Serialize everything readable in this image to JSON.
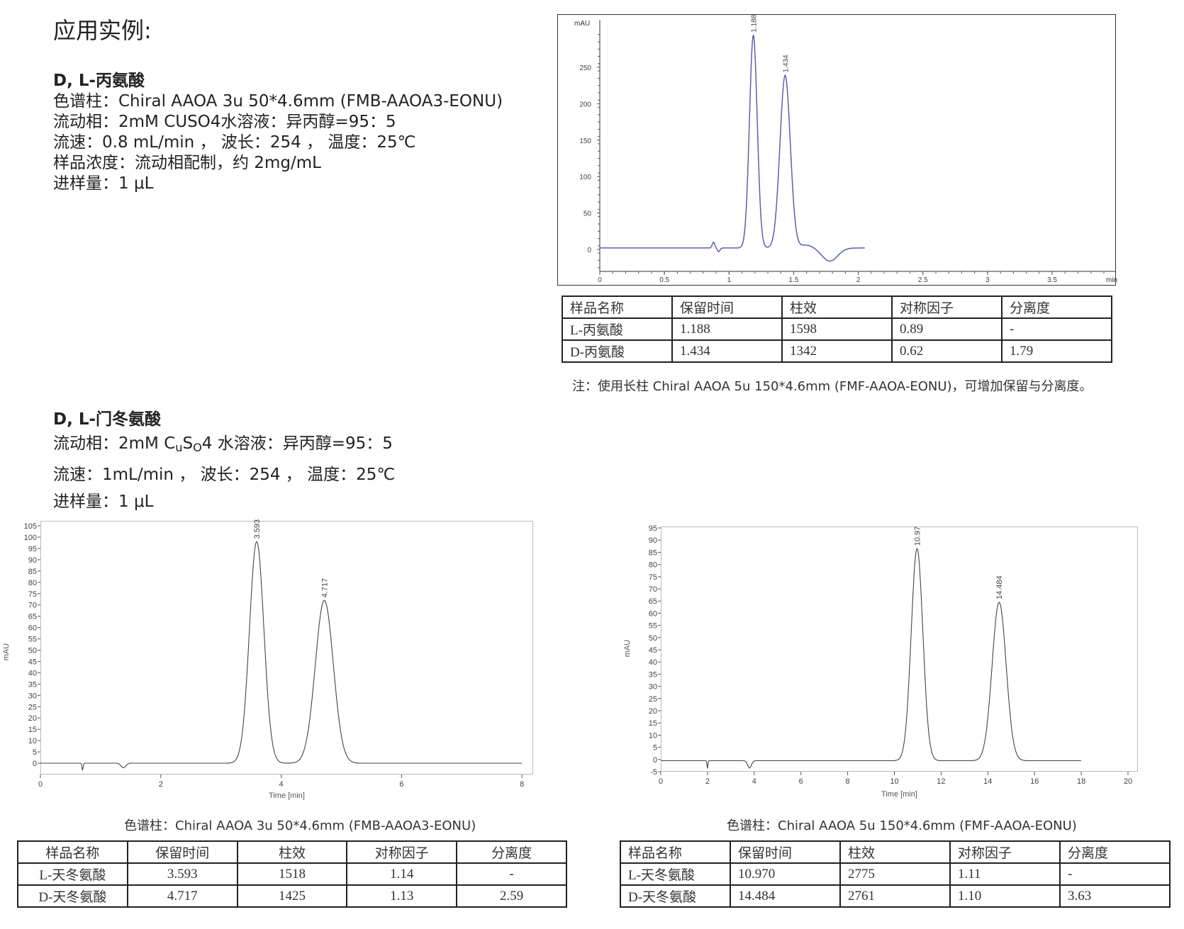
{
  "page_title": "应用实例:",
  "section1": {
    "heading": "D, L-丙氨酸",
    "lines": [
      "色谱柱：Chiral AAOA 3u 50*4.6mm (FMB-AAOA3-EONU)",
      "流动相：2mM CUSO4水溶液：异丙醇=95：5",
      "流速：0.8 mL/min ， 波长：254 ， 温度：25℃",
      "样品浓度：流动相配制，约 2mg/mL",
      "进样量：1 μL"
    ],
    "table": {
      "headers": [
        "样品名称",
        "保留时间",
        "柱效",
        "对称因子",
        "分离度"
      ],
      "rows": [
        [
          "L-丙氨酸",
          "1.188",
          "1598",
          "0.89",
          "-"
        ],
        [
          "D-丙氨酸",
          "1.434",
          "1342",
          "0.62",
          "1.79"
        ]
      ]
    },
    "note": "注：使用长柱 Chiral AAOA 5u 150*4.6mm (FMF-AAOA-EONU)，可增加保留与分离度。"
  },
  "section2": {
    "heading": "D, L-门冬氨酸",
    "mobile_phase_prefix": "流动相：2mM C",
    "mobile_phase_sub1": "u",
    "mobile_phase_mid": "S",
    "mobile_phase_sub2": "O",
    "mobile_phase_suffix": "4 水溶液：异丙醇=95：5",
    "lines": [
      "流速：1mL/min ， 波长：254 ， 温度：25℃",
      "进样量：1 μL"
    ],
    "left_caption": "色谱柱：Chiral AAOA 3u 50*4.6mm (FMB-AAOA3-EONU)",
    "right_caption": "色谱柱：Chiral AAOA 5u 150*4.6mm (FMF-AAOA-EONU)",
    "left_table": {
      "headers": [
        "样品名称",
        "保留时间",
        "柱效",
        "对称因子",
        "分离度"
      ],
      "rows": [
        [
          "L-天冬氨酸",
          "3.593",
          "1518",
          "1.14",
          "-"
        ],
        [
          "D-天冬氨酸",
          "4.717",
          "1425",
          "1.13",
          "2.59"
        ]
      ]
    },
    "right_table": {
      "headers": [
        "样品名称",
        "保留时间",
        "柱效",
        "对称因子",
        "分离度"
      ],
      "rows": [
        [
          "L-天冬氨酸",
          "10.970",
          "2775",
          "1.11",
          "-"
        ],
        [
          "D-天冬氨酸",
          "14.484",
          "2761",
          "1.10",
          "3.63"
        ]
      ]
    }
  },
  "chart_data": [
    {
      "type": "line",
      "title": "",
      "xlabel": "min",
      "ylabel": "mAU",
      "xlim": [
        0,
        4
      ],
      "ylim": [
        -30,
        300
      ],
      "xticks": [
        "0",
        "0.5",
        "1",
        "1.5",
        "2",
        "2.5",
        "3",
        "3.5"
      ],
      "xtick_values": [
        0,
        0.5,
        1,
        1.5,
        2,
        2.5,
        3,
        3.5
      ],
      "yticks": [
        "0",
        "50",
        "100",
        "150",
        "200",
        "250"
      ],
      "ytick_values": [
        0,
        50,
        100,
        150,
        200,
        250
      ],
      "line_color": "#5b5fae",
      "baseline": 2,
      "trace_end": 2.05,
      "peaks": [
        {
          "rt": 1.188,
          "height": 292,
          "sigma": 0.03,
          "label": "1.188"
        },
        {
          "rt": 1.434,
          "height": 237,
          "sigma": 0.04,
          "label": "1.434"
        }
      ],
      "minor_features": [
        {
          "rt": 0.88,
          "height": 8,
          "sigma": 0.01
        },
        {
          "rt": 0.92,
          "height": -5,
          "sigma": 0.01
        },
        {
          "rt": 1.6,
          "height": 4,
          "sigma": 0.05
        },
        {
          "rt": 1.78,
          "height": -18,
          "sigma": 0.06
        }
      ],
      "grid": false
    },
    {
      "type": "line",
      "title": "",
      "xlabel": "Time [min]",
      "ylabel": "mAU",
      "xlim": [
        0,
        8
      ],
      "ylim": [
        -5,
        106
      ],
      "xticks": [
        "0",
        "2",
        "4",
        "6",
        "8"
      ],
      "xtick_values": [
        0,
        2,
        4,
        6,
        8
      ],
      "yticks": [
        "0",
        "5",
        "10",
        "15",
        "20",
        "25",
        "30",
        "35",
        "40",
        "45",
        "50",
        "55",
        "60",
        "65",
        "70",
        "75",
        "80",
        "85",
        "90",
        "95",
        "100",
        "105"
      ],
      "ytick_values": [
        0,
        5,
        10,
        15,
        20,
        25,
        30,
        35,
        40,
        45,
        50,
        55,
        60,
        65,
        70,
        75,
        80,
        85,
        90,
        95,
        100,
        105
      ],
      "line_color": "#444444",
      "baseline": 0,
      "trace_end": 8,
      "peaks": [
        {
          "rt": 3.593,
          "height": 98,
          "sigma": 0.12,
          "label": "3.593"
        },
        {
          "rt": 4.717,
          "height": 72,
          "sigma": 0.15,
          "label": "4.717"
        }
      ],
      "minor_features": [
        {
          "rt": 0.7,
          "height": -3,
          "sigma": 0.01
        },
        {
          "rt": 1.38,
          "height": -2,
          "sigma": 0.04
        }
      ],
      "grid": false
    },
    {
      "type": "line",
      "title": "",
      "xlabel": "Time [min]",
      "ylabel": "mAU",
      "xlim": [
        0,
        20.5
      ],
      "ylim": [
        -5,
        95
      ],
      "xticks": [
        "0",
        "2",
        "4",
        "6",
        "8",
        "10",
        "12",
        "14",
        "16",
        "18",
        "20"
      ],
      "xtick_values": [
        0,
        2,
        4,
        6,
        8,
        10,
        12,
        14,
        16,
        18,
        20
      ],
      "yticks": [
        "-5",
        "0",
        "5",
        "10",
        "15",
        "20",
        "25",
        "30",
        "35",
        "40",
        "45",
        "50",
        "55",
        "60",
        "65",
        "70",
        "75",
        "80",
        "85",
        "90",
        "95"
      ],
      "ytick_values": [
        -5,
        0,
        5,
        10,
        15,
        20,
        25,
        30,
        35,
        40,
        45,
        50,
        55,
        60,
        65,
        70,
        75,
        80,
        85,
        90,
        95
      ],
      "line_color": "#444444",
      "baseline": -0.5,
      "trace_end": 18,
      "peaks": [
        {
          "rt": 10.97,
          "height": 87,
          "sigma": 0.25,
          "label": "10.97"
        },
        {
          "rt": 14.484,
          "height": 65,
          "sigma": 0.3,
          "label": "14.484"
        }
      ],
      "minor_features": [
        {
          "rt": 2.0,
          "height": -3,
          "sigma": 0.02
        },
        {
          "rt": 3.8,
          "height": -3,
          "sigma": 0.08
        }
      ],
      "grid": false
    }
  ]
}
